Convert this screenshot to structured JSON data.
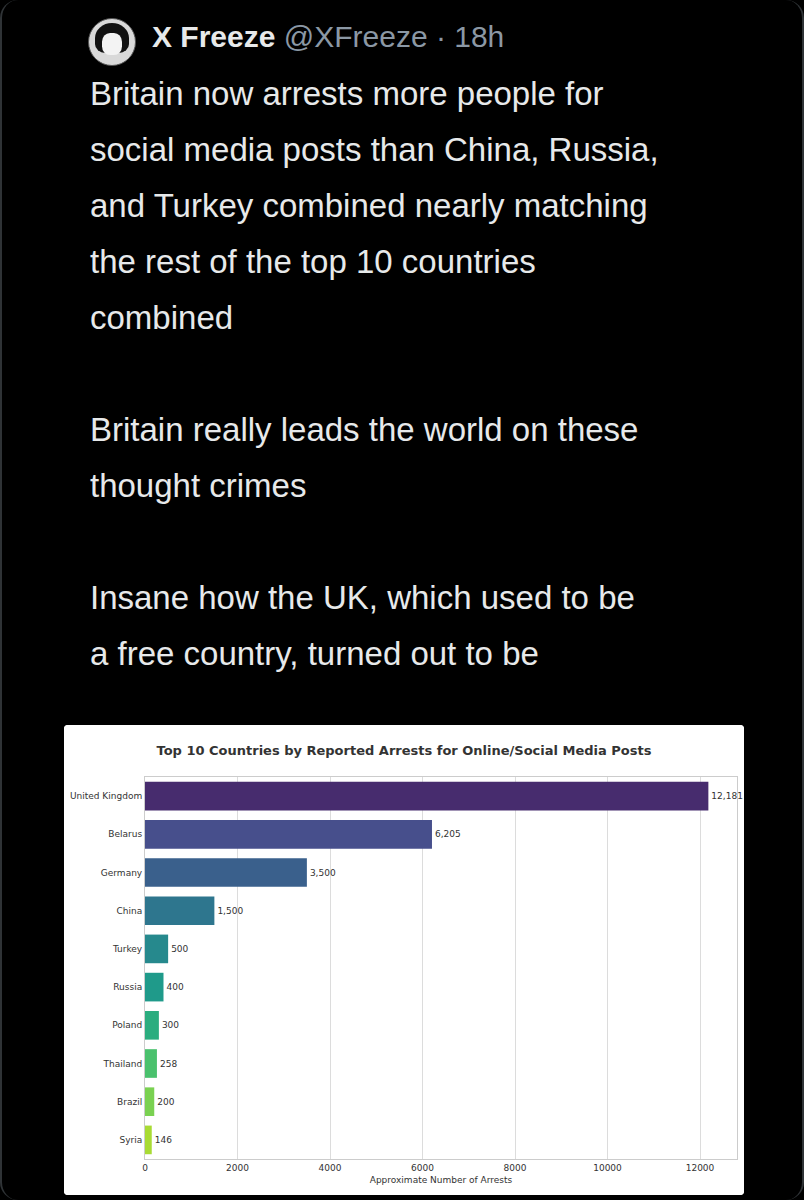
{
  "post": {
    "author": "X Freeze",
    "handle": "@XFreeze",
    "separator": "·",
    "time": "18h",
    "paragraphs": [
      [
        "Britain now arrests more people for",
        "social media posts than China, Russia,",
        "and Turkey combined nearly matching",
        "the rest of the top 10 countries",
        "combined"
      ],
      [
        "Britain really leads the world on these",
        "thought crimes"
      ],
      [
        "Insane how the UK, which used to be",
        "a free country, turned out to be"
      ]
    ]
  },
  "chart_data": {
    "type": "bar",
    "orientation": "horizontal",
    "title": "Top 10 Countries by Reported Arrests for Online/Social Media Posts",
    "xlabel": "Approximate Number of Arrests",
    "categories": [
      "United Kingdom",
      "Belarus",
      "Germany",
      "China",
      "Turkey",
      "Russia",
      "Poland",
      "Thailand",
      "Brazil",
      "Syria"
    ],
    "values": [
      12181,
      6205,
      3500,
      1500,
      500,
      400,
      300,
      258,
      200,
      146
    ],
    "value_labels": [
      "12,181",
      "6,205",
      "3,500",
      "1,500",
      "500",
      "400",
      "300",
      "258",
      "200",
      "146"
    ],
    "colors": [
      "#472c6e",
      "#474f8c",
      "#3a608c",
      "#2e768e",
      "#26898d",
      "#1f9a8a",
      "#2bad7f",
      "#4ac16d",
      "#7ad151",
      "#a8db34"
    ],
    "xlim": [
      0,
      12800
    ],
    "xticks": [
      0,
      2000,
      4000,
      6000,
      8000,
      10000,
      12000
    ],
    "grid": true,
    "data_labels": true
  }
}
